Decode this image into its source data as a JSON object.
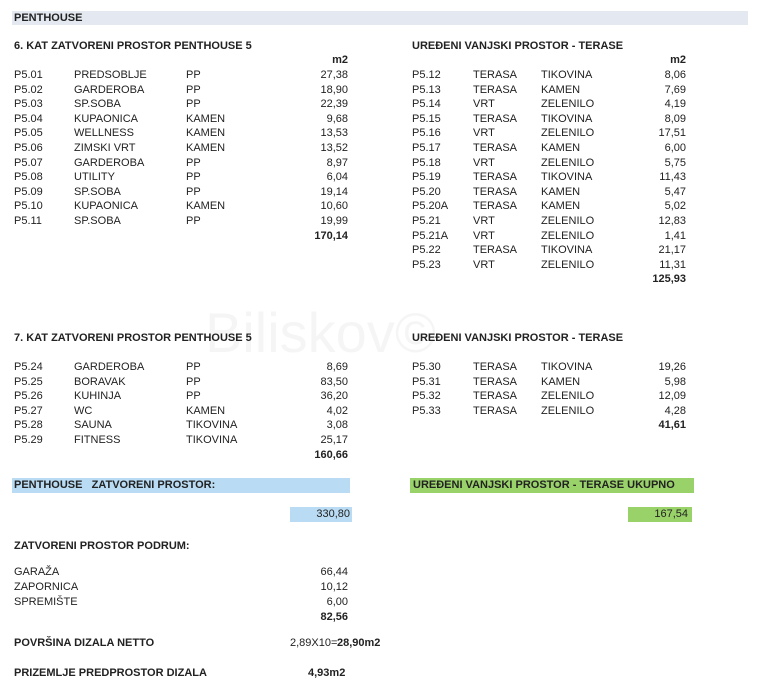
{
  "header": {
    "title": "PENTHOUSE"
  },
  "watermark": "Biliskov©",
  "sections": [
    {
      "title": "6. KAT ZATVORENI PROSTOR PENTHOUSE 5",
      "unit": "m2",
      "rows": [
        [
          "P5.01",
          "PREDSOBLJE",
          "PP",
          "27,38"
        ],
        [
          "P5.02",
          "GARDEROBA",
          "PP",
          "18,90"
        ],
        [
          "P5.03",
          "SP.SOBA",
          "PP",
          "22,39"
        ],
        [
          "P5.04",
          "KUPAONICA",
          "KAMEN",
          "9,68"
        ],
        [
          "P5.05",
          "WELLNESS",
          "KAMEN",
          "13,53"
        ],
        [
          "P5.06",
          "ZIMSKI VRT",
          "KAMEN",
          "13,52"
        ],
        [
          "P5.07",
          "GARDEROBA",
          "PP",
          "8,97"
        ],
        [
          "P5.08",
          "UTILITY",
          "PP",
          "6,04"
        ],
        [
          "P5.09",
          "SP.SOBA",
          "PP",
          "19,14"
        ],
        [
          "P5.10",
          "KUPAONICA",
          "KAMEN",
          "10,60"
        ],
        [
          "P5.11",
          "SP.SOBA",
          "PP",
          "19,99"
        ]
      ],
      "total": "170,14"
    },
    {
      "title": "UREĐENI VANJSKI PROSTOR - TERASE",
      "unit": "m2",
      "rows": [
        [
          "P5.12",
          "TERASA",
          "TIKOVINA",
          "8,06"
        ],
        [
          "P5.13",
          "TERASA",
          "KAMEN",
          "7,69"
        ],
        [
          "P5.14",
          "VRT",
          "ZELENILO",
          "4,19"
        ],
        [
          "P5.15",
          "TERASA",
          "TIKOVINA",
          "8,09"
        ],
        [
          "P5.16",
          "VRT",
          "ZELENILO",
          "17,51"
        ],
        [
          "P5.17",
          "TERASA",
          "KAMEN",
          "6,00"
        ],
        [
          "P5.18",
          "VRT",
          "ZELENILO",
          "5,75"
        ],
        [
          "P5.19",
          "TERASA",
          "TIKOVINA",
          "11,43"
        ],
        [
          "P5.20",
          "TERASA",
          "KAMEN",
          "5,47"
        ],
        [
          "P5.20A",
          "TERASA",
          "KAMEN",
          "5,02"
        ],
        [
          "P5.21",
          "VRT",
          "ZELENILO",
          "12,83"
        ],
        [
          "P5.21A",
          "VRT",
          "ZELENILO",
          "1,41"
        ],
        [
          "P5.22",
          "TERASA",
          "TIKOVINA",
          "21,17"
        ],
        [
          "P5.23",
          "VRT",
          "ZELENILO",
          "11,31"
        ]
      ],
      "total": "125,93"
    },
    {
      "title": "7. KAT ZATVORENI PROSTOR PENTHOUSE 5",
      "rows": [
        [
          "P5.24",
          "GARDEROBA",
          "PP",
          "8,69"
        ],
        [
          "P5.25",
          "BORAVAK",
          "PP",
          "83,50"
        ],
        [
          "P5.26",
          "KUHINJA",
          "PP",
          "36,20"
        ],
        [
          "P5.27",
          "WC",
          "KAMEN",
          "4,02"
        ],
        [
          "P5.28",
          "SAUNA",
          "TIKOVINA",
          "3,08"
        ],
        [
          "P5.29",
          "FITNESS",
          "TIKOVINA",
          "25,17"
        ]
      ],
      "total": "160,66"
    },
    {
      "title": "UREĐENI VANJSKI PROSTOR - TERASE",
      "rows": [
        [
          "P5.30",
          "TERASA",
          "TIKOVINA",
          "19,26"
        ],
        [
          "P5.31",
          "TERASA",
          "KAMEN",
          "5,98"
        ],
        [
          "P5.32",
          "TERASA",
          "ZELENILO",
          "12,09"
        ],
        [
          "P5.33",
          "TERASA",
          "ZELENILO",
          "4,28"
        ]
      ],
      "total": "41,61"
    }
  ],
  "summary": {
    "closed_label": "PENTHOUSE   ZATVORENI PROSTOR:",
    "closed_value": "330,80",
    "outdoor_label": "UREĐENI VANJSKI PROSTOR - TERASE UKUPNO",
    "outdoor_value": "167,54"
  },
  "basement": {
    "title": "ZATVORENI PROSTOR PODRUM:",
    "rows": [
      [
        "GARAŽA",
        "66,44"
      ],
      [
        "ZAPORNICA",
        "10,12"
      ],
      [
        "SPREMIŠTE",
        "6,00"
      ]
    ],
    "total": "82,56"
  },
  "elevator": {
    "label": "POVRŠINA DIZALA NETTO",
    "formula": "2,89X10=",
    "value": "28,90m2"
  },
  "lobby": {
    "label": "PRIZEMLJE PREDPROSTOR DIZALA",
    "value": "4,93m2"
  }
}
